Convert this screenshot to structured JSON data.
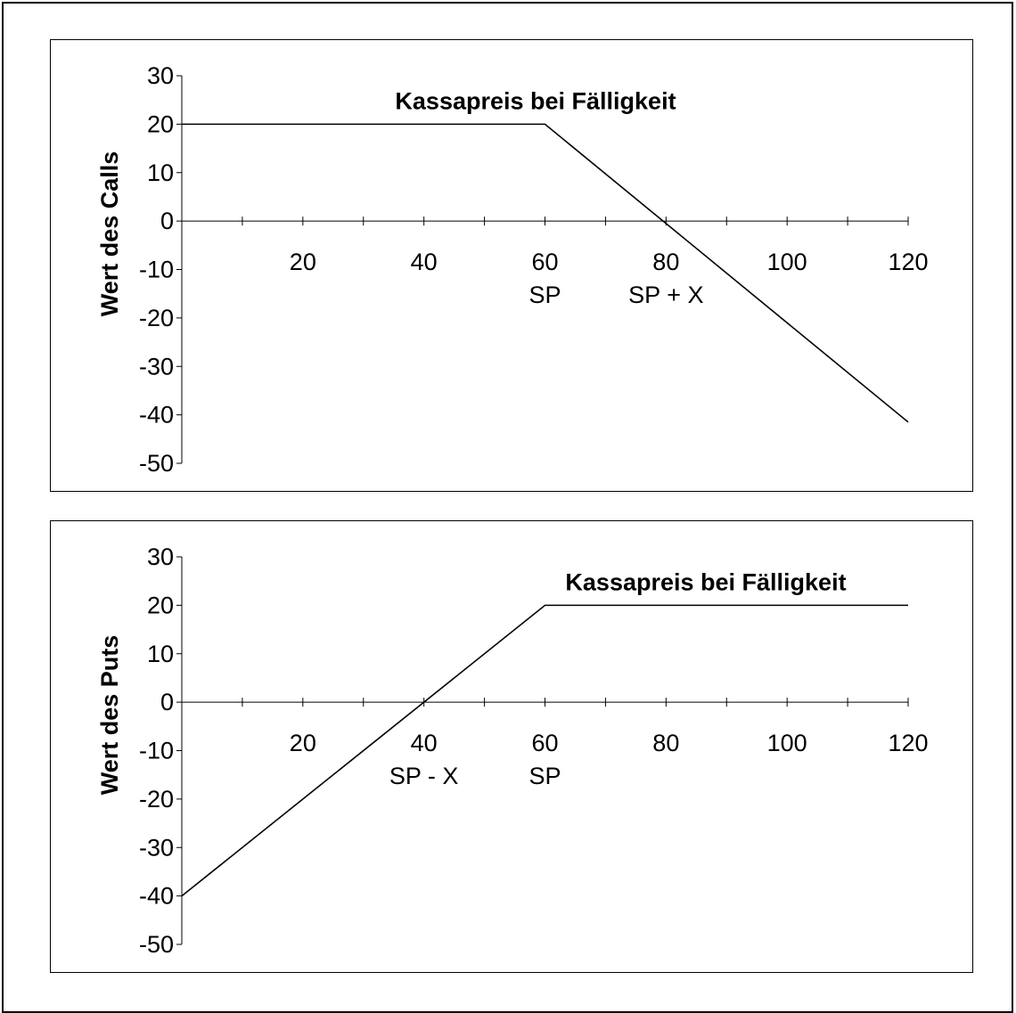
{
  "chart_data": [
    {
      "type": "line",
      "title": "Kassapreis bei Fälligkeit",
      "ylabel": "Wert des Calls",
      "xlabel": "",
      "xlim": [
        0,
        120
      ],
      "ylim": [
        -50,
        30
      ],
      "yticks": [
        30,
        20,
        10,
        0,
        -10,
        -20,
        -30,
        -40,
        -50
      ],
      "xtick_labels": [
        20,
        40,
        60,
        80,
        100,
        120
      ],
      "annotations": [
        {
          "x": 60,
          "text": "SP"
        },
        {
          "x": 80,
          "text": "SP + X"
        }
      ],
      "series": [
        {
          "x": [
            0,
            60,
            120
          ],
          "values": [
            20,
            20,
            -41.5
          ]
        }
      ]
    },
    {
      "type": "line",
      "title": "Kassapreis bei Fälligkeit",
      "ylabel": "Wert des Puts",
      "xlabel": "",
      "xlim": [
        0,
        120
      ],
      "ylim": [
        -50,
        30
      ],
      "yticks": [
        30,
        20,
        10,
        0,
        -10,
        -20,
        -30,
        -40,
        -50
      ],
      "xtick_labels": [
        20,
        40,
        60,
        80,
        100,
        120
      ],
      "annotations": [
        {
          "x": 40,
          "text": "SP - X"
        },
        {
          "x": 60,
          "text": "SP"
        }
      ],
      "series": [
        {
          "x": [
            0,
            60,
            120
          ],
          "values": [
            -40,
            20,
            20
          ]
        }
      ]
    }
  ]
}
